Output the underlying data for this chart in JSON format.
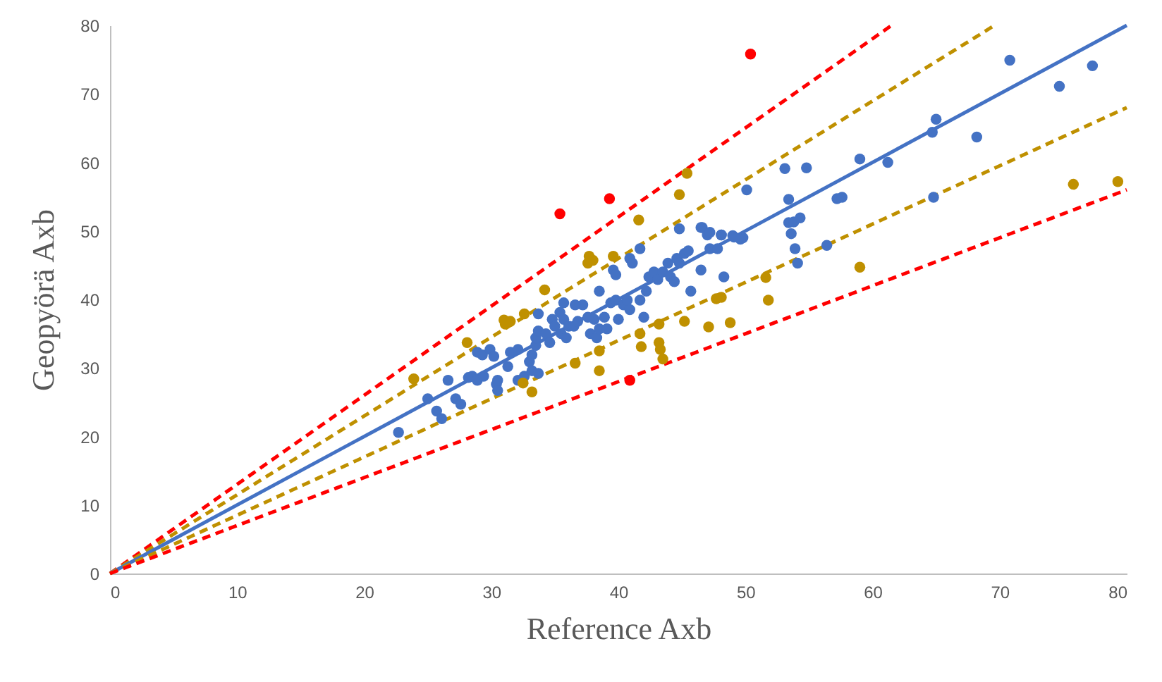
{
  "chart_data": {
    "type": "scatter",
    "xlabel": "Reference Axb",
    "ylabel": "Geopyörä Axb",
    "xlim": [
      0,
      80
    ],
    "ylim": [
      0,
      80
    ],
    "xticks": [
      0,
      10,
      20,
      30,
      40,
      50,
      60,
      70,
      80
    ],
    "yticks": [
      0,
      10,
      20,
      30,
      40,
      50,
      60,
      70,
      80
    ],
    "series": [
      {
        "type": "line",
        "color": "#ff0000",
        "line_style": "dashed",
        "marker": "none",
        "x": [
          0,
          61.5
        ],
        "values": [
          0,
          80
        ]
      },
      {
        "type": "line",
        "color": "#bf9000",
        "line_style": "dashed",
        "marker": "none",
        "x": [
          0,
          69.6
        ],
        "values": [
          0,
          80
        ]
      },
      {
        "type": "line",
        "color": "#4472c4",
        "line_style": "solid",
        "marker": "none",
        "x": [
          0,
          80
        ],
        "values": [
          0,
          80
        ]
      },
      {
        "type": "line",
        "color": "#bf9000",
        "line_style": "dashed",
        "marker": "none",
        "x": [
          0,
          80
        ],
        "values": [
          0,
          68
        ]
      },
      {
        "type": "line",
        "color": "#ff0000",
        "line_style": "dashed",
        "marker": "none",
        "x": [
          0,
          80
        ],
        "values": [
          0,
          56
        ]
      },
      {
        "color": "#4472c4",
        "marker": "circle",
        "x": [
          22.7,
          25.0,
          25.7,
          26.1,
          26.6,
          27.2,
          27.6,
          28.2,
          28.5,
          28.9,
          29.4,
          28.9,
          29.3,
          29.9,
          30.2,
          30.4,
          30.5,
          30.5,
          31.3,
          31.5,
          32.1,
          32.1,
          32.6,
          33.0,
          33.2,
          33.5,
          33.5,
          33.7,
          33.7,
          33.2,
          33.7,
          34.3,
          34.6,
          34.8,
          35.0,
          35.4,
          35.5,
          35.7,
          35.9,
          36.1,
          36.5,
          36.8,
          37.2,
          37.6,
          37.8,
          38.1,
          38.3,
          38.5,
          38.9,
          39.1,
          39.4,
          39.8,
          40.0,
          40.4,
          40.7,
          40.9,
          41.7,
          42.0,
          42.2,
          42.4,
          42.8,
          43.1,
          43.5,
          43.9,
          44.1,
          44.4,
          44.6,
          44.8,
          45.2,
          45.5,
          45.7,
          46.5,
          46.6,
          47.0,
          47.2,
          47.8,
          48.1,
          48.3,
          49.0,
          49.8,
          50.1,
          40.9,
          41.1,
          41.7,
          39.6,
          39.8,
          38.5,
          35.7,
          36.6,
          44.8,
          46.5,
          47.2,
          48.1,
          49.1,
          49.6,
          70.8,
          77.3,
          74.7,
          65.0,
          64.7,
          68.2,
          59.0,
          61.2,
          53.1,
          54.8,
          53.4,
          57.2,
          57.6,
          64.8,
          53.4,
          53.8,
          54.3,
          53.6,
          53.9,
          54.1,
          56.4
        ],
        "values": [
          20.6,
          25.5,
          23.7,
          22.6,
          28.2,
          25.5,
          24.7,
          28.6,
          28.8,
          28.2,
          28.8,
          32.3,
          31.9,
          32.7,
          31.7,
          27.6,
          26.7,
          28.2,
          30.2,
          32.3,
          32.7,
          28.2,
          28.8,
          30.9,
          31.9,
          33.3,
          34.4,
          37.9,
          35.4,
          29.6,
          29.2,
          35.0,
          33.7,
          37.1,
          36.1,
          38.1,
          35.0,
          37.1,
          34.4,
          36.1,
          36.1,
          36.8,
          39.2,
          37.4,
          35.0,
          37.1,
          34.4,
          35.7,
          37.4,
          35.7,
          39.5,
          39.9,
          37.1,
          39.2,
          39.9,
          38.5,
          39.9,
          37.4,
          41.2,
          43.3,
          44.0,
          42.9,
          44.0,
          45.3,
          43.3,
          42.6,
          46.0,
          45.3,
          46.7,
          47.1,
          41.2,
          44.3,
          50.5,
          49.4,
          47.4,
          47.4,
          49.4,
          43.3,
          49.3,
          49.0,
          56.0,
          46.0,
          45.3,
          47.4,
          44.3,
          43.6,
          41.2,
          39.5,
          39.2,
          50.3,
          50.5,
          49.8,
          49.4,
          49.1,
          48.8,
          74.9,
          74.1,
          71.1,
          66.3,
          64.4,
          63.7,
          60.5,
          60.0,
          59.1,
          59.2,
          54.6,
          54.7,
          54.9,
          54.9,
          51.2,
          51.3,
          51.9,
          49.6,
          47.4,
          45.3,
          47.9
        ]
      },
      {
        "color": "#bf9000",
        "marker": "circle",
        "x": [
          23.9,
          28.1,
          31.0,
          31.1,
          31.5,
          32.6,
          34.2,
          37.7,
          37.6,
          38.0,
          39.6,
          41.6,
          44.8,
          45.4,
          32.5,
          33.2,
          36.6,
          38.5,
          38.5,
          41.7,
          41.8,
          43.2,
          43.2,
          43.3,
          43.5,
          45.2,
          47.1,
          48.8,
          47.7,
          48.1,
          51.6,
          51.8,
          59.0,
          75.8,
          79.3
        ],
        "values": [
          28.4,
          33.7,
          37.0,
          36.4,
          36.8,
          37.9,
          41.4,
          46.3,
          45.3,
          45.7,
          46.3,
          51.6,
          55.3,
          58.4,
          27.8,
          26.5,
          30.7,
          32.5,
          29.6,
          35.0,
          33.1,
          36.4,
          33.7,
          32.7,
          31.3,
          36.8,
          36.0,
          36.6,
          40.1,
          40.3,
          43.2,
          39.9,
          44.7,
          56.8,
          57.2
        ]
      },
      {
        "color": "#ff0000",
        "marker": "circle",
        "x": [
          35.4,
          39.3,
          40.9,
          50.4
        ],
        "values": [
          52.5,
          54.7,
          28.2,
          75.8
        ]
      }
    ]
  }
}
